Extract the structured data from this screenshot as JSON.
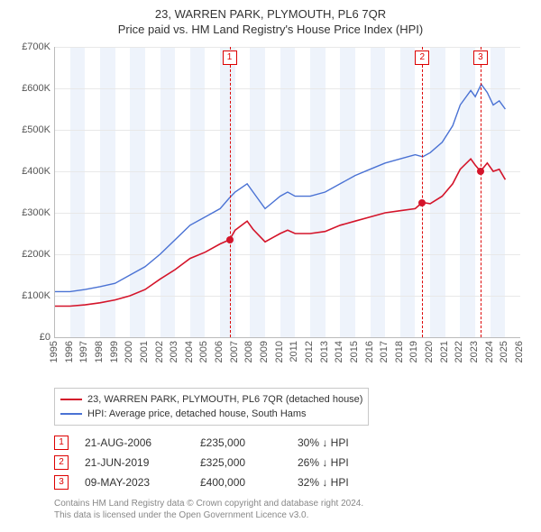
{
  "title1": "23, WARREN PARK, PLYMOUTH, PL6 7QR",
  "title2": "Price paid vs. HM Land Registry's House Price Index (HPI)",
  "chart": {
    "type": "line",
    "x_min": 1995,
    "x_max": 2026,
    "y_min": 0,
    "y_max": 700000,
    "y_ticks": [
      0,
      100000,
      200000,
      300000,
      400000,
      500000,
      600000,
      700000
    ],
    "y_tick_labels": [
      "£0",
      "£100K",
      "£200K",
      "£300K",
      "£400K",
      "£500K",
      "£600K",
      "£700K"
    ],
    "x_ticks": [
      1995,
      1996,
      1997,
      1998,
      1999,
      2000,
      2001,
      2002,
      2003,
      2004,
      2005,
      2006,
      2007,
      2008,
      2009,
      2010,
      2011,
      2012,
      2013,
      2014,
      2015,
      2016,
      2017,
      2018,
      2019,
      2020,
      2021,
      2022,
      2023,
      2024,
      2025,
      2026
    ],
    "band_color": "#eef3fb",
    "grid_color": "#e8e8e8",
    "axis_color": "#bbbbbb",
    "background_color": "#ffffff",
    "series": [
      {
        "name": "hpi",
        "color": "#4a72d4",
        "width": 1.4,
        "data": [
          [
            1995,
            110000
          ],
          [
            1996,
            110000
          ],
          [
            1997,
            115000
          ],
          [
            1998,
            122000
          ],
          [
            1999,
            130000
          ],
          [
            2000,
            150000
          ],
          [
            2001,
            170000
          ],
          [
            2002,
            200000
          ],
          [
            2003,
            235000
          ],
          [
            2004,
            270000
          ],
          [
            2005,
            290000
          ],
          [
            2006,
            310000
          ],
          [
            2006.6,
            335000
          ],
          [
            2007,
            350000
          ],
          [
            2007.8,
            370000
          ],
          [
            2008.2,
            350000
          ],
          [
            2009,
            310000
          ],
          [
            2009.5,
            325000
          ],
          [
            2010,
            340000
          ],
          [
            2010.5,
            350000
          ],
          [
            2011,
            340000
          ],
          [
            2012,
            340000
          ],
          [
            2013,
            350000
          ],
          [
            2014,
            370000
          ],
          [
            2015,
            390000
          ],
          [
            2016,
            405000
          ],
          [
            2017,
            420000
          ],
          [
            2018,
            430000
          ],
          [
            2019,
            440000
          ],
          [
            2019.5,
            435000
          ],
          [
            2020,
            445000
          ],
          [
            2020.8,
            470000
          ],
          [
            2021.5,
            510000
          ],
          [
            2022,
            560000
          ],
          [
            2022.7,
            595000
          ],
          [
            2023,
            580000
          ],
          [
            2023.4,
            610000
          ],
          [
            2023.8,
            590000
          ],
          [
            2024.2,
            560000
          ],
          [
            2024.6,
            570000
          ],
          [
            2025,
            550000
          ]
        ]
      },
      {
        "name": "property",
        "color": "#d4142a",
        "width": 1.6,
        "data": [
          [
            1995,
            75000
          ],
          [
            1996,
            75000
          ],
          [
            1997,
            78000
          ],
          [
            1998,
            83000
          ],
          [
            1999,
            90000
          ],
          [
            2000,
            100000
          ],
          [
            2001,
            115000
          ],
          [
            2002,
            140000
          ],
          [
            2003,
            163000
          ],
          [
            2004,
            190000
          ],
          [
            2005,
            205000
          ],
          [
            2006,
            225000
          ],
          [
            2006.63,
            235000
          ],
          [
            2007,
            258000
          ],
          [
            2007.8,
            280000
          ],
          [
            2008.2,
            260000
          ],
          [
            2009,
            230000
          ],
          [
            2009.5,
            240000
          ],
          [
            2010,
            250000
          ],
          [
            2010.5,
            258000
          ],
          [
            2011,
            250000
          ],
          [
            2012,
            250000
          ],
          [
            2013,
            255000
          ],
          [
            2014,
            270000
          ],
          [
            2015,
            280000
          ],
          [
            2016,
            290000
          ],
          [
            2017,
            300000
          ],
          [
            2018,
            305000
          ],
          [
            2019,
            310000
          ],
          [
            2019.47,
            325000
          ],
          [
            2020,
            322000
          ],
          [
            2020.8,
            340000
          ],
          [
            2021.5,
            370000
          ],
          [
            2022,
            405000
          ],
          [
            2022.7,
            430000
          ],
          [
            2023,
            415000
          ],
          [
            2023.35,
            400000
          ],
          [
            2023.8,
            420000
          ],
          [
            2024.2,
            400000
          ],
          [
            2024.6,
            405000
          ],
          [
            2025,
            380000
          ]
        ]
      }
    ],
    "markers": [
      {
        "n": "1",
        "x": 2006.63,
        "price_y": 235000
      },
      {
        "n": "2",
        "x": 2019.47,
        "price_y": 325000
      },
      {
        "n": "3",
        "x": 2023.35,
        "price_y": 400000
      }
    ],
    "sale_dot_color": "#d4142a"
  },
  "legend": {
    "items": [
      {
        "color": "#d4142a",
        "label": "23, WARREN PARK, PLYMOUTH, PL6 7QR (detached house)"
      },
      {
        "color": "#4a72d4",
        "label": "HPI: Average price, detached house, South Hams"
      }
    ]
  },
  "sales": [
    {
      "n": "1",
      "date": "21-AUG-2006",
      "price": "£235,000",
      "diff": "30% ↓ HPI"
    },
    {
      "n": "2",
      "date": "21-JUN-2019",
      "price": "£325,000",
      "diff": "26% ↓ HPI"
    },
    {
      "n": "3",
      "date": "09-MAY-2023",
      "price": "£400,000",
      "diff": "32% ↓ HPI"
    }
  ],
  "attribution": {
    "line1": "Contains HM Land Registry data © Crown copyright and database right 2024.",
    "line2": "This data is licensed under the Open Government Licence v3.0."
  }
}
